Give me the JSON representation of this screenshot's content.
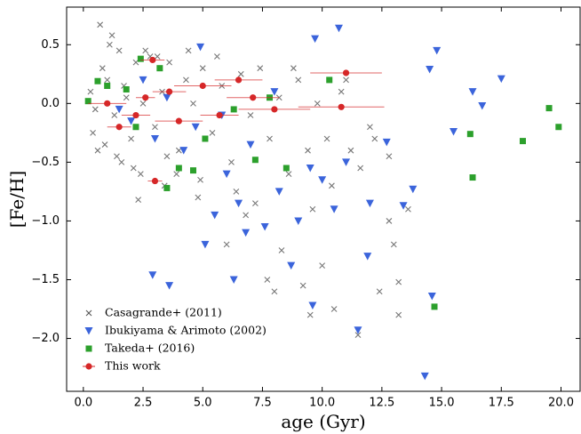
{
  "chart_data": {
    "type": "scatter",
    "x_label": "age (Gyr)",
    "y_label": "[Fe/H]",
    "xlim": [
      -0.7,
      20.8
    ],
    "ylim": [
      -2.45,
      0.82
    ],
    "xticks": [
      {
        "value": 0,
        "label": "0.0"
      },
      {
        "value": 2.5,
        "label": "2.5"
      },
      {
        "value": 5,
        "label": "5.0"
      },
      {
        "value": 7.5,
        "label": "7.5"
      },
      {
        "value": 10,
        "label": "10.0"
      },
      {
        "value": 12.5,
        "label": "12.5"
      },
      {
        "value": 15,
        "label": "15.0"
      },
      {
        "value": 17.5,
        "label": "17.5"
      },
      {
        "value": 20,
        "label": "20.0"
      }
    ],
    "yticks": [
      {
        "value": -2,
        "label": "−2.0"
      },
      {
        "value": -1.5,
        "label": "−1.5"
      },
      {
        "value": -1,
        "label": "−1.0"
      },
      {
        "value": -0.5,
        "label": "−0.5"
      },
      {
        "value": 0,
        "label": "0.0"
      },
      {
        "value": 0.5,
        "label": "0.5"
      }
    ],
    "legend": "lower left",
    "series": [
      {
        "name": "Casagrande+ (2011)",
        "color": "#555555",
        "marker": "x",
        "x": [
          0.7,
          1.2,
          8.0,
          9.5,
          10.5,
          12.4,
          13.2,
          13.2,
          12.8,
          13.0,
          11.5,
          9.2,
          7.7,
          8.3,
          6.0,
          2.3,
          12.2,
          12.8,
          13.6,
          10.0,
          11.2,
          10.2,
          0.3,
          0.5,
          0.8,
          1.0,
          1.3,
          1.5,
          1.8,
          2.0,
          2.2,
          2.5,
          2.8,
          3.0,
          3.3,
          3.6,
          4.0,
          4.3,
          4.6,
          5.0,
          5.4,
          5.8,
          6.2,
          6.6,
          7.0,
          7.4,
          7.8,
          8.2,
          8.6,
          9.0,
          9.4,
          9.8,
          10.4,
          10.8,
          11.6,
          12.0,
          0.4,
          0.9,
          1.1,
          1.4,
          1.7,
          2.1,
          2.6,
          3.1,
          3.5,
          3.9,
          4.4,
          4.9,
          5.6,
          6.4,
          7.2,
          8.8,
          9.6,
          11.0,
          0.6,
          1.6,
          2.4,
          3.4,
          4.8,
          6.8
        ],
        "values": [
          0.67,
          0.58,
          -1.6,
          -1.8,
          -1.75,
          -1.6,
          -1.8,
          -1.52,
          -1.0,
          -1.2,
          -1.97,
          -1.55,
          -1.5,
          -1.25,
          -1.2,
          -0.82,
          -0.3,
          -0.45,
          -0.9,
          -1.38,
          -0.4,
          -0.3,
          0.1,
          -0.05,
          0.3,
          0.2,
          -0.1,
          0.45,
          0.05,
          -0.3,
          0.35,
          0.0,
          0.4,
          -0.2,
          0.1,
          0.35,
          -0.4,
          0.2,
          0.0,
          0.3,
          -0.25,
          0.15,
          -0.5,
          0.25,
          -0.1,
          0.3,
          -0.3,
          0.05,
          -0.6,
          0.2,
          -0.4,
          0.0,
          -0.7,
          0.1,
          -0.55,
          -0.2,
          -0.25,
          -0.35,
          0.5,
          -0.45,
          0.15,
          -0.55,
          0.45,
          0.4,
          -0.45,
          -0.6,
          0.45,
          -0.65,
          0.4,
          -0.75,
          -0.85,
          0.3,
          -0.9,
          0.2,
          -0.4,
          -0.5,
          -0.6,
          -0.7,
          -0.8,
          -0.95
        ]
      },
      {
        "name": "Ibukiyama & Arimoto (2002)",
        "color": "#3b64db",
        "marker": "triangle",
        "x": [
          4.9,
          9.7,
          10.7,
          14.8,
          14.5,
          16.3,
          17.5,
          16.7,
          15.5,
          2.9,
          3.6,
          6.3,
          5.1,
          14.3,
          14.6,
          11.5,
          9.6,
          13.8,
          13.4,
          11.9,
          12.7,
          8.7,
          7.6,
          5.5,
          6.8,
          4.7,
          3.0,
          2.0,
          3.5,
          1.5,
          4.2,
          6.0,
          7.0,
          8.2,
          9.5,
          10.5,
          11.0,
          12.0,
          5.8,
          8.0,
          2.5,
          6.5,
          9.0,
          10.0
        ],
        "values": [
          0.48,
          0.55,
          0.64,
          0.45,
          0.29,
          0.1,
          0.21,
          -0.02,
          -0.24,
          -1.46,
          -1.55,
          -1.5,
          -1.2,
          -2.32,
          -1.64,
          -1.93,
          -1.72,
          -0.73,
          -0.87,
          -1.3,
          -0.33,
          -1.38,
          -1.05,
          -0.95,
          -1.1,
          -0.2,
          -0.3,
          -0.15,
          0.05,
          -0.05,
          -0.4,
          -0.6,
          -0.35,
          -0.75,
          -0.55,
          -0.9,
          -0.5,
          -0.85,
          -0.1,
          0.1,
          0.2,
          -0.85,
          -1.0,
          -0.65
        ]
      },
      {
        "name": "Takeda+ (2016)",
        "color": "#2ca02c",
        "marker": "square",
        "x": [
          0.2,
          0.6,
          1.0,
          1.8,
          2.4,
          3.2,
          3.5,
          4.0,
          5.1,
          6.3,
          7.8,
          8.5,
          10.3,
          14.7,
          16.2,
          16.3,
          18.4,
          19.5,
          19.9,
          4.6,
          7.2,
          2.2
        ],
        "values": [
          0.02,
          0.19,
          0.15,
          0.12,
          0.38,
          0.3,
          -0.72,
          -0.55,
          -0.3,
          -0.05,
          0.05,
          -0.55,
          0.2,
          -1.73,
          -0.26,
          -0.63,
          -0.32,
          -0.04,
          -0.2,
          -0.57,
          -0.48,
          -0.2
        ]
      },
      {
        "name": "This work",
        "color": "#d62728",
        "marker": "errorbar",
        "x": [
          3.0,
          11.0,
          10.8,
          2.9,
          1.0,
          2.2,
          3.6,
          5.0,
          6.5,
          4.0,
          8.0,
          1.5,
          5.7,
          2.6,
          7.1
        ],
        "values": [
          -0.66,
          0.26,
          -0.03,
          0.37,
          0.0,
          -0.1,
          0.1,
          0.15,
          0.2,
          -0.15,
          -0.05,
          -0.2,
          -0.1,
          0.05,
          0.05
        ],
        "xerr": [
          0.3,
          1.5,
          1.8,
          0.5,
          0.8,
          0.6,
          0.7,
          1.2,
          1.0,
          1.0,
          1.5,
          0.5,
          0.8,
          0.4,
          1.1
        ]
      }
    ]
  }
}
